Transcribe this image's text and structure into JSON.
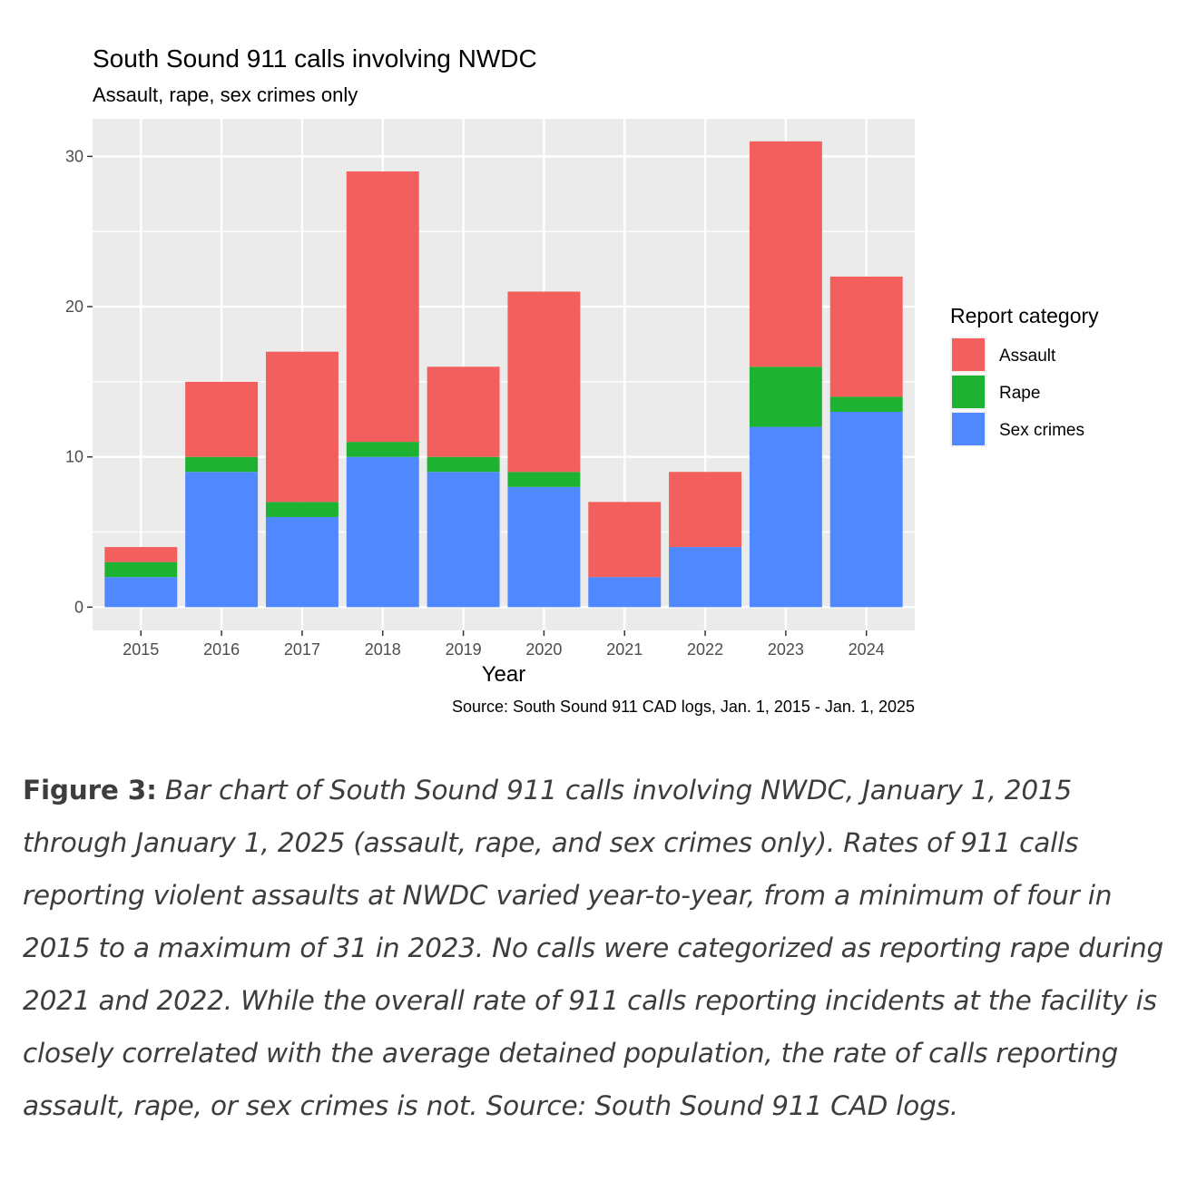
{
  "chart_data": {
    "type": "bar",
    "stacked": true,
    "title": "South Sound 911 calls involving NWDC",
    "subtitle": "Assault, rape, sex crimes only",
    "xlabel": "Year",
    "ylabel": "",
    "caption": "Source: South Sound 911 CAD logs, Jan. 1, 2015 - Jan. 1, 2025",
    "categories": [
      "2015",
      "2016",
      "2017",
      "2018",
      "2019",
      "2020",
      "2021",
      "2022",
      "2023",
      "2024"
    ],
    "series": [
      {
        "name": "Sex crimes",
        "color": "#5088FF",
        "values": [
          2,
          9,
          6,
          10,
          9,
          8,
          2,
          4,
          12,
          13
        ]
      },
      {
        "name": "Rape",
        "color": "#1DB232",
        "values": [
          1,
          1,
          1,
          1,
          1,
          1,
          0,
          0,
          4,
          1
        ]
      },
      {
        "name": "Assault",
        "color": "#F25F5C",
        "values": [
          1,
          5,
          10,
          18,
          6,
          12,
          5,
          5,
          15,
          8
        ]
      }
    ],
    "yticks": [
      0,
      10,
      20,
      30
    ],
    "ylim": [
      -1.55,
      32.5
    ],
    "grid": true,
    "legend": {
      "title": "Report category",
      "position": "right",
      "items": [
        "Assault",
        "Rape",
        "Sex crimes"
      ]
    }
  },
  "figure_caption": {
    "label": "Figure 3:",
    "text": "Bar chart of South Sound 911 calls involving NWDC, January 1, 2015 through January 1, 2025 (assault, rape, and sex crimes only). Rates of 911 calls reporting violent assaults at NWDC varied year-to-year, from a minimum of four in 2015 to a maximum of 31 in 2023. No calls were categorized as reporting rape during 2021 and 2022. While the overall rate of 911 calls reporting incidents at the facility is closely correlated with the average detained population, the rate of calls reporting assault, rape, or sex crimes is not. Source: South Sound 911 CAD logs."
  }
}
